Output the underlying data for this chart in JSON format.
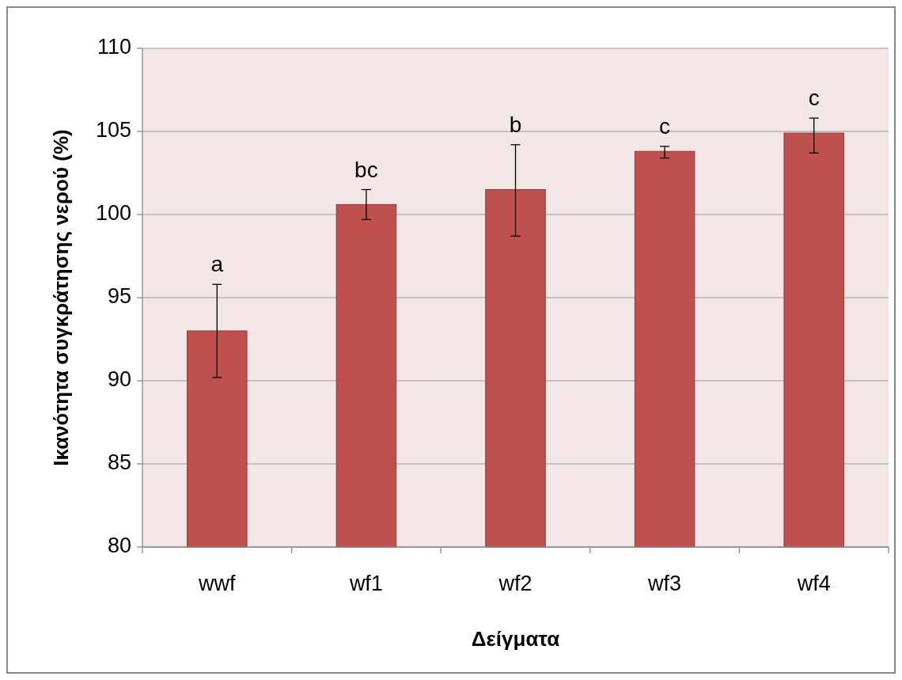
{
  "chart_data": {
    "type": "bar",
    "xlabel": "Δείγματα",
    "ylabel": "Ικανότητα συγκράτησης νερού (%)",
    "categories": [
      "wwf",
      "wf1",
      "wf2",
      "wf3",
      "wf4"
    ],
    "values": [
      93.0,
      100.6,
      101.5,
      103.8,
      104.9
    ],
    "errors": [
      [
        90.2,
        95.8
      ],
      [
        99.7,
        101.5
      ],
      [
        98.7,
        104.2
      ],
      [
        103.4,
        104.1
      ],
      [
        103.7,
        105.8
      ]
    ],
    "color": "#c0504d",
    "ylim": [
      80,
      110
    ],
    "yticks": [
      80,
      85,
      90,
      95,
      100,
      105,
      110
    ],
    "grid": "y",
    "annotations": [
      "a",
      "bc",
      "b",
      "c",
      "c"
    ]
  }
}
